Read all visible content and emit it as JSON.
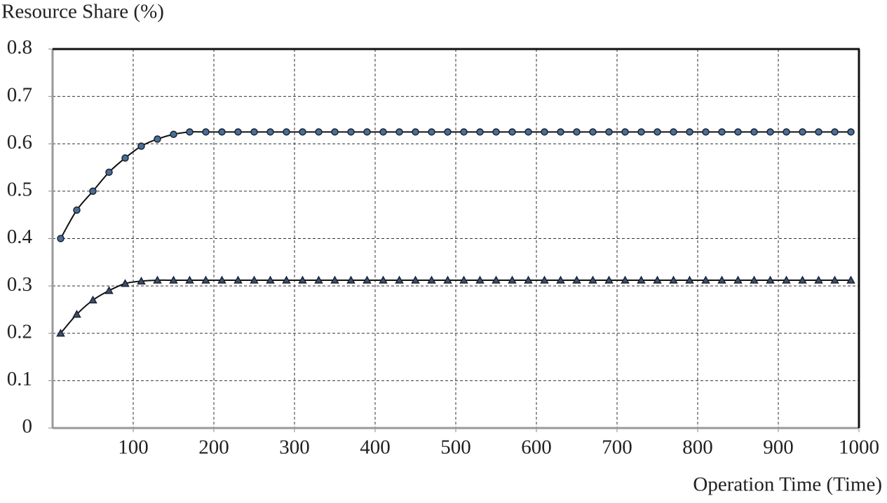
{
  "chart_data": {
    "type": "line",
    "y_label": "Resource Share (%)",
    "x_label": "Operation Time (Time)",
    "x": [
      10,
      30,
      50,
      70,
      90,
      110,
      130,
      150,
      170,
      190,
      210,
      230,
      250,
      270,
      290,
      310,
      330,
      350,
      370,
      390,
      410,
      430,
      450,
      470,
      490,
      510,
      530,
      550,
      570,
      590,
      610,
      630,
      650,
      670,
      690,
      710,
      730,
      750,
      770,
      790,
      810,
      830,
      850,
      870,
      890,
      910,
      930,
      950,
      970,
      990
    ],
    "series": [
      {
        "color": "#4a6d97",
        "marker": "circle",
        "values": [
          0.4,
          0.46,
          0.5,
          0.54,
          0.57,
          0.595,
          0.61,
          0.62,
          0.625,
          0.625,
          0.625,
          0.625,
          0.625,
          0.625,
          0.625,
          0.625,
          0.625,
          0.625,
          0.625,
          0.625,
          0.625,
          0.625,
          0.625,
          0.625,
          0.625,
          0.625,
          0.625,
          0.625,
          0.625,
          0.625,
          0.625,
          0.625,
          0.625,
          0.625,
          0.625,
          0.625,
          0.625,
          0.625,
          0.625,
          0.625,
          0.625,
          0.625,
          0.625,
          0.625,
          0.625,
          0.625,
          0.625,
          0.625,
          0.625,
          0.625
        ]
      },
      {
        "color": "#3d4f6b",
        "marker": "triangle",
        "values": [
          0.2,
          0.24,
          0.27,
          0.29,
          0.305,
          0.31,
          0.312,
          0.312,
          0.312,
          0.312,
          0.312,
          0.312,
          0.312,
          0.312,
          0.312,
          0.312,
          0.312,
          0.312,
          0.312,
          0.312,
          0.312,
          0.312,
          0.312,
          0.312,
          0.312,
          0.312,
          0.312,
          0.312,
          0.312,
          0.312,
          0.312,
          0.312,
          0.312,
          0.312,
          0.312,
          0.312,
          0.312,
          0.312,
          0.312,
          0.312,
          0.312,
          0.312,
          0.312,
          0.312,
          0.312,
          0.312,
          0.312,
          0.312,
          0.312,
          0.312
        ]
      }
    ],
    "xlim": [
      0,
      1000
    ],
    "xticks": [
      100,
      200,
      300,
      400,
      500,
      600,
      700,
      800,
      900,
      1000
    ],
    "ylim": [
      0,
      0.8
    ],
    "yticks": [
      0,
      0.1,
      0.2,
      0.3,
      0.4,
      0.5,
      0.6,
      0.7,
      0.8
    ],
    "grid": true
  }
}
